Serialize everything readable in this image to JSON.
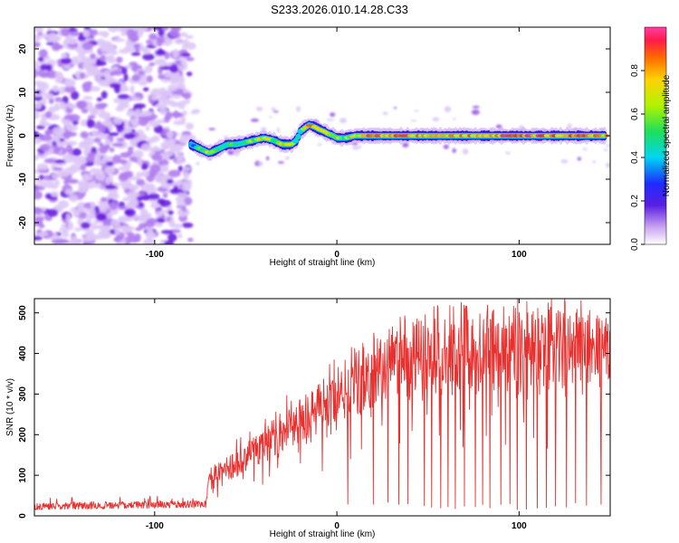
{
  "title": "S233.2026.010.14.28.C33",
  "colors": {
    "line": "#e8312f",
    "axis": "#000000",
    "noise": "#8a2be2"
  },
  "chart_data": [
    {
      "type": "heatmap",
      "name": "spectrogram",
      "xlabel": "Height of straight line (km)",
      "ylabel": "Frequency (Hz)",
      "xlim": [
        -166,
        150
      ],
      "ylim": [
        -25,
        25
      ],
      "xticks": [
        -100,
        0,
        100
      ],
      "yticks": [
        -20,
        -10,
        0,
        10,
        20
      ],
      "noise_region": {
        "x": [
          -166,
          -80
        ],
        "y": [
          -25,
          25
        ]
      },
      "ridge": {
        "x": [
          -80,
          -75,
          -70,
          -65,
          -60,
          -55,
          -50,
          -45,
          -40,
          -35,
          -30,
          -25,
          -22,
          -20,
          -17,
          -15,
          -12,
          -10,
          -7,
          -5,
          -2,
          0,
          5,
          10,
          20,
          40,
          60,
          80,
          100,
          120,
          140,
          148
        ],
        "freq": [
          -2,
          -3,
          -4,
          -3,
          -2,
          -2,
          -1.5,
          -1,
          -0.5,
          -1,
          -2,
          -2,
          -1,
          1,
          2,
          2.5,
          2,
          1.5,
          1,
          0.5,
          0,
          -0.5,
          -0.5,
          0,
          0,
          0,
          0,
          0,
          0,
          0,
          0,
          0
        ],
        "amplitude": [
          0.3,
          0.55,
          0.65,
          0.5,
          0.45,
          0.5,
          0.55,
          0.6,
          0.7,
          0.6,
          0.65,
          0.7,
          0.4,
          0.5,
          0.75,
          0.8,
          0.7,
          0.75,
          0.7,
          0.6,
          0.55,
          0.55,
          0.6,
          0.7,
          0.85,
          0.8,
          0.75,
          0.8,
          0.9,
          0.85,
          0.8,
          0.75
        ]
      },
      "colorbar": {
        "label": "Normalized spectral amplitude",
        "range": [
          0.0,
          1.0
        ],
        "ticks": [
          "0.0",
          "0.2",
          "0.4",
          "0.6",
          "0.8"
        ]
      }
    },
    {
      "type": "line",
      "name": "snr",
      "xlabel": "Height of straight line (km)",
      "ylabel": "SNR (10 * v/v)",
      "xlim": [
        -166,
        150
      ],
      "ylim": [
        0,
        535
      ],
      "xticks": [
        -100,
        0,
        100
      ],
      "yticks": [
        0,
        100,
        200,
        300,
        400,
        500
      ],
      "envelope": {
        "x": [
          -166,
          -72,
          -70,
          -60,
          -50,
          -40,
          -30,
          -20,
          -10,
          0,
          10,
          20,
          30,
          40,
          60,
          80,
          100,
          120,
          140,
          150
        ],
        "y": [
          20,
          25,
          120,
          130,
          160,
          190,
          230,
          260,
          300,
          330,
          370,
          400,
          430,
          450,
          460,
          465,
          470,
          465,
          470,
          460
        ]
      },
      "dropouts_x": [
        6,
        20,
        28,
        34,
        39,
        48,
        52,
        57,
        61,
        65,
        70,
        76,
        80,
        84,
        90,
        95,
        99,
        104,
        110,
        115,
        120,
        126,
        131,
        137,
        145
      ]
    }
  ]
}
